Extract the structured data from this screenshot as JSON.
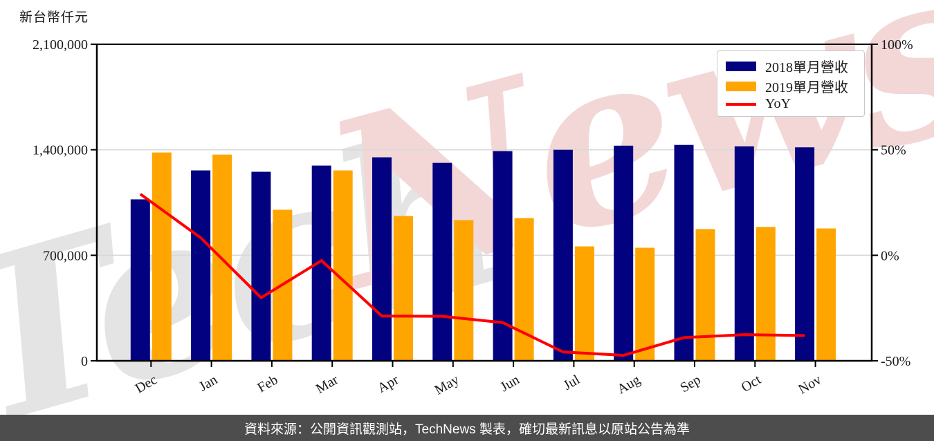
{
  "header": {
    "axis_unit_label": "新台幣仟元"
  },
  "watermark": {
    "left_text": "Tech",
    "right_text": "News",
    "left_color": "#e4e4e4",
    "right_color": "#f3d7d7"
  },
  "legend": {
    "items": [
      {
        "label": "2018單月營收",
        "color": "#020280",
        "swatch": "box"
      },
      {
        "label": "2019單月營收",
        "color": "#ffa500",
        "swatch": "box"
      },
      {
        "label": "YoY",
        "color": "#ff0000",
        "swatch": "line"
      }
    ]
  },
  "footer": {
    "text": "資料來源：公開資訊觀測站，TechNews 製表，確切最新訊息以原站公告為準",
    "bg_color": "#4d4d4d",
    "text_color": "#ffffff"
  },
  "chart_data": {
    "type": "bar",
    "subtype": "grouped bars with YoY line on secondary axis",
    "categories": [
      "Dec",
      "Jan",
      "Feb",
      "Mar",
      "Apr",
      "May",
      "Jun",
      "Jul",
      "Aug",
      "Sep",
      "Oct",
      "Nov"
    ],
    "series": [
      {
        "name": "2018單月營收",
        "type": "bar",
        "axis": "left",
        "color": "#020280",
        "values": [
          1071000,
          1263000,
          1254000,
          1295000,
          1350000,
          1313000,
          1391000,
          1400000,
          1427000,
          1432000,
          1423000,
          1416000
        ]
      },
      {
        "name": "2019單月營收",
        "type": "bar",
        "axis": "left",
        "color": "#ffa500",
        "values": [
          1382000,
          1368000,
          1002000,
          1263000,
          961000,
          933000,
          947000,
          759000,
          750000,
          874000,
          888000,
          878000
        ]
      },
      {
        "name": "YoY",
        "type": "line",
        "axis": "right",
        "color": "#ff0000",
        "values": [
          29.0,
          8.3,
          -20.1,
          -2.5,
          -28.8,
          -28.9,
          -31.9,
          -45.8,
          -47.4,
          -39.0,
          -37.6,
          -38.0
        ]
      }
    ],
    "left_axis": {
      "title": "新台幣仟元",
      "min": 0,
      "max": 2100000,
      "tick_values": [
        2100000,
        1400000,
        700000,
        0
      ],
      "tick_labels": [
        "2,100,000",
        "1,400,000",
        "700,000",
        "0"
      ]
    },
    "right_axis": {
      "min": -50,
      "max": 100,
      "tick_values": [
        100,
        50,
        0,
        -50
      ],
      "tick_labels": [
        "100%",
        "50%",
        "0%",
        "-50%"
      ]
    },
    "grid": {
      "horizontal_values": [
        1400000,
        700000
      ],
      "color": "#d9d9d9",
      "on": true
    },
    "legend_position": "upper right"
  }
}
